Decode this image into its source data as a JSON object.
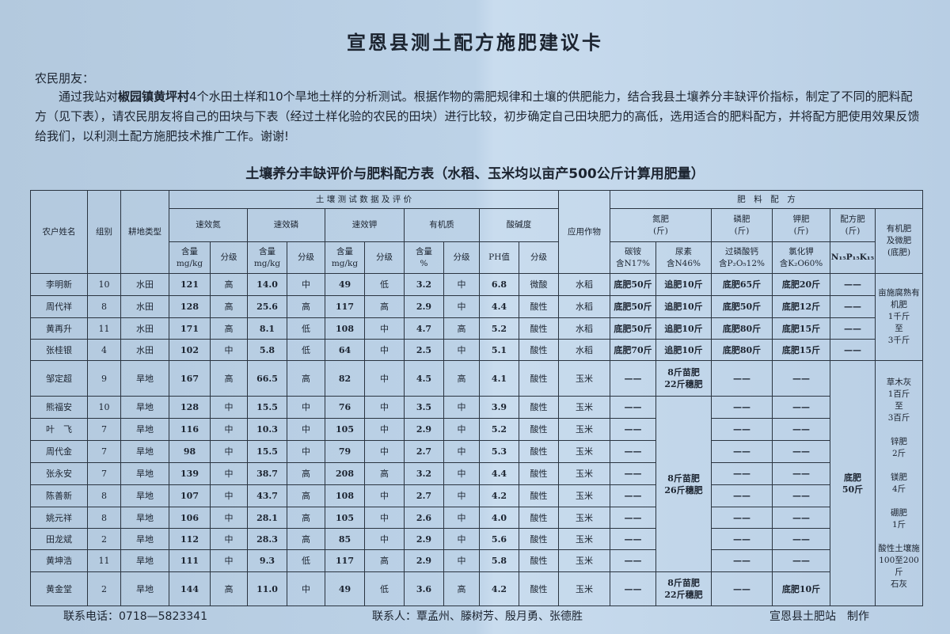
{
  "title": "宣恩县测土配方施肥建议卡",
  "greeting": "农民朋友：",
  "intro": {
    "before": "通过我站对",
    "place": "椒园镇黄坪村",
    "after": "4个水田土样和10个旱地土样的分析测试。根据作物的需肥规律和土壤的供肥能力，结合我县土壤养分丰缺评价指标，制定了不同的肥料配方（见下表），请农民朋友将自己的田块与下表（经过土样化验的农民的田块）进行比较，初步确定自己田块肥力的高低，选用适合的肥料配方，并将配方肥使用效果反馈给我们，以利测土配方施肥技术推广工作。谢谢!"
  },
  "table_title": "土壤养分丰缺评价与肥料配方表（水稻、玉米均以亩产500公斤计算用肥量）",
  "headers": {
    "farmer": "农户姓名",
    "group": "组别",
    "land": "耕地类型",
    "soil_test": "土 壤 测 试 数 据 及 评 价",
    "n": "速效氮",
    "p": "速效磷",
    "k": "速效钾",
    "om": "有机质",
    "ph": "酸碱度",
    "content_mgkg": "含量\nmg/kg",
    "content_pct": "含量\n%",
    "grade": "分级",
    "ph_value": "PH值",
    "crop": "应用作物",
    "fertilizer": "肥　料　配　方",
    "n_fert": "氮肥\n(斤)",
    "p_fert": "磷肥\n(斤)",
    "k_fert": "钾肥\n(斤)",
    "compound": "配方肥\n(斤)",
    "organic": "有机肥\n及微肥\n(底肥)",
    "nh4hco3": "碳铵\n含N17%",
    "urea": "尿素\n含N46%",
    "superphosphate": "过磷酸钙\n含P₂O₅12%",
    "kcl": "氯化钾\n含K₂O60%",
    "npk": "N₁₅P₁₅K₁₅"
  },
  "rows": [
    {
      "name": "李明新",
      "group": "10",
      "land": "水田",
      "n": "121",
      "ng": "高",
      "p": "14.0",
      "pg": "中",
      "k": "49",
      "kg": "低",
      "om": "3.2",
      "omg": "中",
      "ph": "6.8",
      "phg": "微酸",
      "crop": "水稻",
      "nh4": "底肥50斤",
      "urea": "追肥10斤",
      "sp": "底肥65斤",
      "kcl": "底肥20斤",
      "cmp": "——",
      "org": "亩施腐熟有\n机肥\n1千斤\n至\n3千斤"
    },
    {
      "name": "周代祥",
      "group": "8",
      "land": "水田",
      "n": "128",
      "ng": "高",
      "p": "25.6",
      "pg": "高",
      "k": "117",
      "kg": "高",
      "om": "2.9",
      "omg": "中",
      "ph": "4.4",
      "phg": "酸性",
      "crop": "水稻",
      "nh4": "底肥50斤",
      "urea": "追肥10斤",
      "sp": "底肥50斤",
      "kcl": "底肥12斤",
      "cmp": "——"
    },
    {
      "name": "黄再升",
      "group": "11",
      "land": "水田",
      "n": "171",
      "ng": "高",
      "p": "8.1",
      "pg": "低",
      "k": "108",
      "kg": "中",
      "om": "4.7",
      "omg": "高",
      "ph": "5.2",
      "phg": "酸性",
      "crop": "水稻",
      "nh4": "底肥50斤",
      "urea": "追肥10斤",
      "sp": "底肥80斤",
      "kcl": "底肥15斤",
      "cmp": "——"
    },
    {
      "name": "张桂银",
      "group": "4",
      "land": "水田",
      "n": "102",
      "ng": "中",
      "p": "5.8",
      "pg": "低",
      "k": "64",
      "kg": "中",
      "om": "2.5",
      "omg": "中",
      "ph": "5.1",
      "phg": "酸性",
      "crop": "水稻",
      "nh4": "底肥70斤",
      "urea": "追肥10斤",
      "sp": "底肥80斤",
      "kcl": "底肥15斤",
      "cmp": "——"
    },
    {
      "name": "邹定超",
      "group": "9",
      "land": "旱地",
      "n": "167",
      "ng": "高",
      "p": "66.5",
      "pg": "高",
      "k": "82",
      "kg": "中",
      "om": "4.5",
      "omg": "高",
      "ph": "4.1",
      "phg": "酸性",
      "crop": "玉米",
      "nh4": "——",
      "urea": "8斤苗肥\n22斤穗肥",
      "sp": "——",
      "kcl": "——",
      "cmp": "底肥\n50斤",
      "org": "草木灰\n1百斤\n至\n3百斤\n\n锌肥\n2斤\n\n镁肥\n4斤\n\n硼肥\n1斤\n\n酸性土壤施\n100至200斤\n石灰"
    },
    {
      "name": "熊福安",
      "group": "10",
      "land": "旱地",
      "n": "128",
      "ng": "中",
      "p": "15.5",
      "pg": "中",
      "k": "76",
      "kg": "中",
      "om": "3.5",
      "omg": "中",
      "ph": "3.9",
      "phg": "酸性",
      "crop": "玉米",
      "nh4": "——",
      "urea": "8斤苗肥\n26斤穗肥",
      "sp": "——",
      "kcl": "——"
    },
    {
      "name": "叶　飞",
      "group": "7",
      "land": "旱地",
      "n": "116",
      "ng": "中",
      "p": "10.3",
      "pg": "中",
      "k": "105",
      "kg": "中",
      "om": "2.9",
      "omg": "中",
      "ph": "5.2",
      "phg": "酸性",
      "crop": "玉米",
      "nh4": "——",
      "sp": "——",
      "kcl": "——"
    },
    {
      "name": "周代金",
      "group": "7",
      "land": "旱地",
      "n": "98",
      "ng": "中",
      "p": "15.5",
      "pg": "中",
      "k": "79",
      "kg": "中",
      "om": "2.7",
      "omg": "中",
      "ph": "5.3",
      "phg": "酸性",
      "crop": "玉米",
      "nh4": "——",
      "sp": "——",
      "kcl": "——"
    },
    {
      "name": "张永安",
      "group": "7",
      "land": "旱地",
      "n": "139",
      "ng": "中",
      "p": "38.7",
      "pg": "高",
      "k": "208",
      "kg": "高",
      "om": "3.2",
      "omg": "中",
      "ph": "4.4",
      "phg": "酸性",
      "crop": "玉米",
      "nh4": "——",
      "sp": "——",
      "kcl": "——"
    },
    {
      "name": "陈善新",
      "group": "8",
      "land": "旱地",
      "n": "107",
      "ng": "中",
      "p": "43.7",
      "pg": "高",
      "k": "108",
      "kg": "中",
      "om": "2.7",
      "omg": "中",
      "ph": "4.2",
      "phg": "酸性",
      "crop": "玉米",
      "nh4": "——",
      "sp": "——",
      "kcl": "——"
    },
    {
      "name": "姚元祥",
      "group": "8",
      "land": "旱地",
      "n": "106",
      "ng": "中",
      "p": "28.1",
      "pg": "高",
      "k": "105",
      "kg": "中",
      "om": "2.6",
      "omg": "中",
      "ph": "4.0",
      "phg": "酸性",
      "crop": "玉米",
      "nh4": "——",
      "sp": "——",
      "kcl": "——"
    },
    {
      "name": "田龙斌",
      "group": "2",
      "land": "旱地",
      "n": "112",
      "ng": "中",
      "p": "28.3",
      "pg": "高",
      "k": "85",
      "kg": "中",
      "om": "2.9",
      "omg": "中",
      "ph": "5.6",
      "phg": "酸性",
      "crop": "玉米",
      "nh4": "——",
      "sp": "——",
      "kcl": "——"
    },
    {
      "name": "黄坤浩",
      "group": "11",
      "land": "旱地",
      "n": "111",
      "ng": "中",
      "p": "9.3",
      "pg": "低",
      "k": "117",
      "kg": "高",
      "om": "2.9",
      "omg": "中",
      "ph": "5.8",
      "phg": "酸性",
      "crop": "玉米",
      "nh4": "——",
      "sp": "——",
      "kcl": "——"
    },
    {
      "name": "黄金堂",
      "group": "2",
      "land": "旱地",
      "n": "144",
      "ng": "高",
      "p": "11.0",
      "pg": "中",
      "k": "49",
      "kg": "低",
      "om": "3.6",
      "omg": "高",
      "ph": "4.2",
      "phg": "酸性",
      "crop": "玉米",
      "nh4": "——",
      "urea": "8斤苗肥\n22斤穗肥",
      "sp": "——",
      "kcl": "底肥10斤"
    }
  ],
  "footer": {
    "phone": "联系电话：0718—5823341",
    "contacts": "联系人：覃孟州、滕树芳、殷月勇、张德胜",
    "maker": "宣恩县土肥站　制作"
  }
}
